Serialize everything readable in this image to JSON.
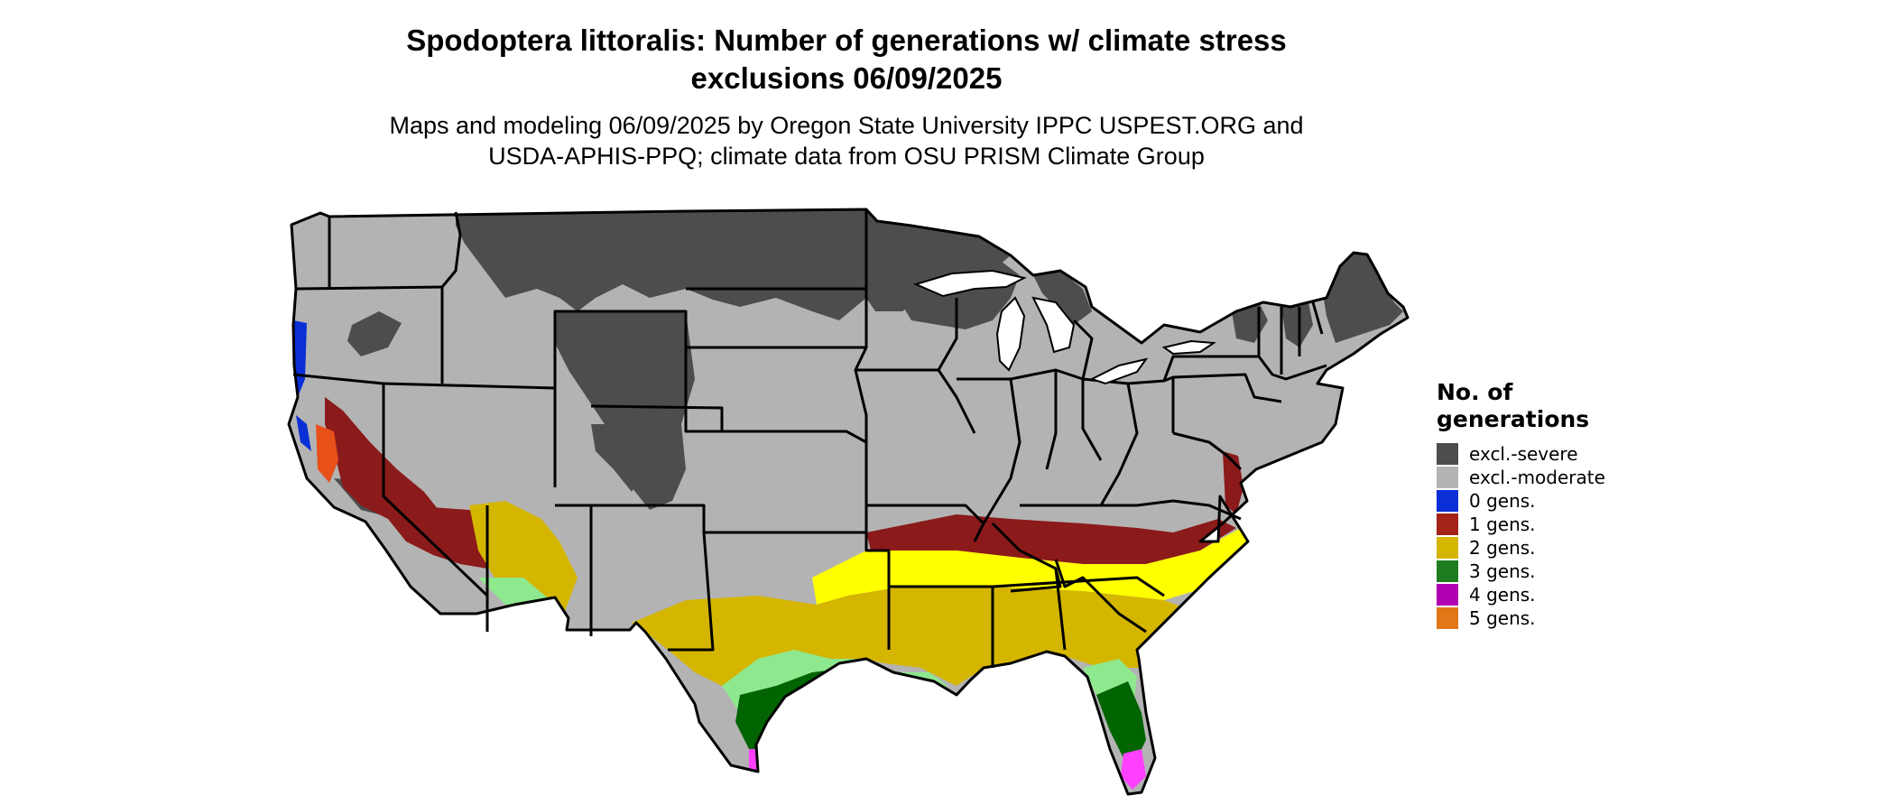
{
  "title": {
    "line1": "Spodoptera littoralis: Number of generations w/ climate stress",
    "line2": "exclusions 06/09/2025"
  },
  "subtitle": {
    "line1": "Maps and modeling 06/09/2025 by Oregon State University IPPC USPEST.ORG and",
    "line2": "USDA-APHIS-PPQ; climate data from OSU PRISM Climate Group"
  },
  "legend": {
    "title": "No. of generations",
    "items": [
      {
        "label": "excl.-severe",
        "color": "#4d4d4d"
      },
      {
        "label": "excl.-moderate",
        "color": "#b3b3b3"
      },
      {
        "label": "0 gens.",
        "color": "#0a2fd6"
      },
      {
        "label": "1 gens.",
        "color": "#a32318"
      },
      {
        "label": "2 gens.",
        "color": "#d4b600"
      },
      {
        "label": "3 gens.",
        "color": "#1e7d1e"
      },
      {
        "label": "4 gens.",
        "color": "#b000b0"
      },
      {
        "label": "5 gens.",
        "color": "#e07818"
      }
    ]
  },
  "map_colors": {
    "yellow_bright": "#ffff00",
    "green_light": "#8ee88e",
    "green_dark": "#006400",
    "magenta": "#ff40ff",
    "state_border": "#000000"
  }
}
